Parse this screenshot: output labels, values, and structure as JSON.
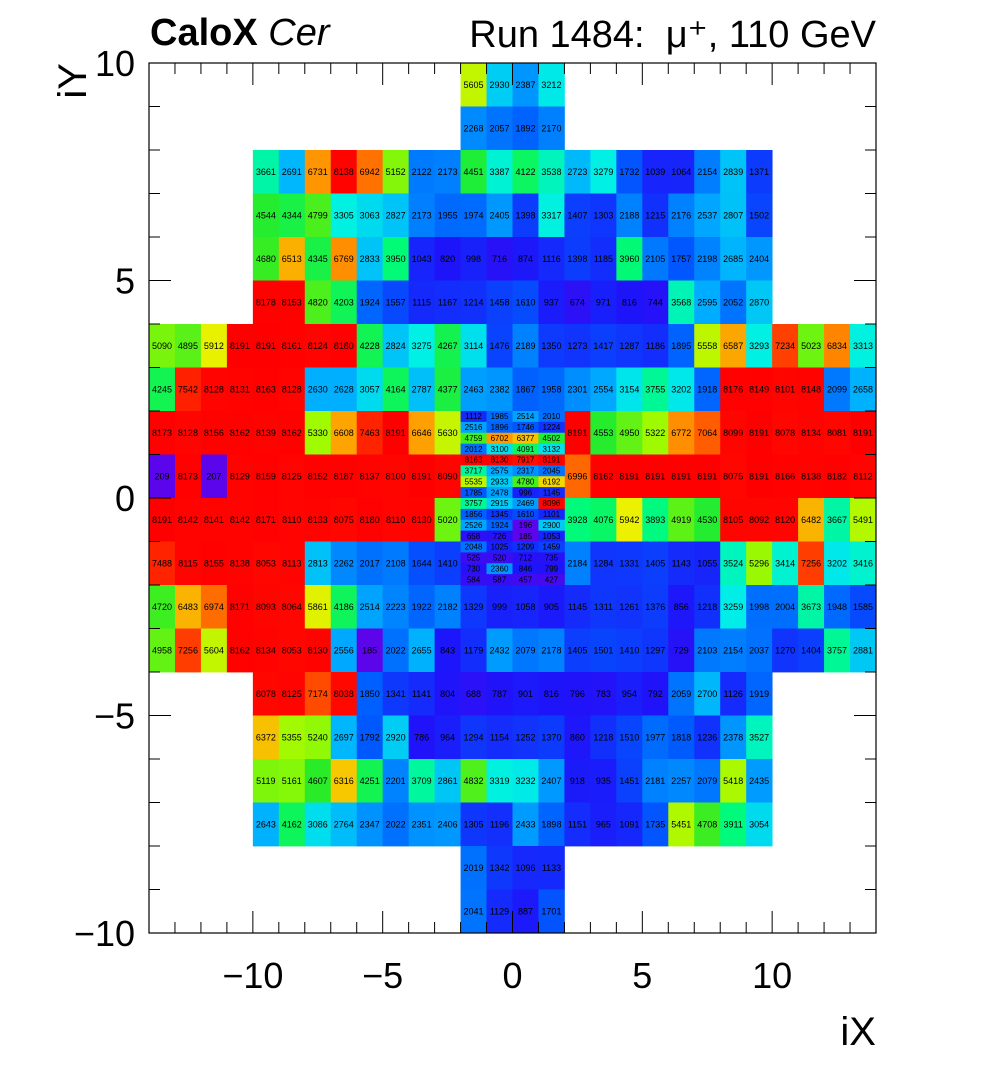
{
  "header": {
    "experiment": "CaloX",
    "channel": "Cer",
    "run_info": "Run 1484:",
    "beam": "μ⁺, 110 GeV"
  },
  "chart_data": {
    "type": "heatmap",
    "xlabel": "iX",
    "ylabel": "iY",
    "xlim": [
      -14,
      14
    ],
    "ylim": [
      -10,
      10
    ],
    "x_ticks": [
      -10,
      -5,
      0,
      5,
      10
    ],
    "y_ticks": [
      -10,
      -5,
      0,
      5,
      10
    ],
    "color_scale": {
      "min": 0,
      "max": 8200,
      "saturates": true
    },
    "coarse": {
      "tower_size": 1,
      "rows": [
        {
          "iy": 9.5,
          "cells": [
            {
              "ix": -1.5,
              "v": 5605
            },
            {
              "ix": -0.5,
              "v": 2930
            },
            {
              "ix": 0.5,
              "v": 2387
            },
            {
              "ix": 1.5,
              "v": 3212
            }
          ]
        },
        {
          "iy": 8.5,
          "cells": [
            {
              "ix": -1.5,
              "v": 2268
            },
            {
              "ix": -0.5,
              "v": 2057
            },
            {
              "ix": 0.5,
              "v": 1892
            },
            {
              "ix": 1.5,
              "v": 2170
            }
          ]
        },
        {
          "iy": 7.5,
          "x0": -9.5,
          "values": [
            3661,
            2691,
            6731,
            8138,
            6942,
            5152,
            2122,
            2173,
            4451,
            3387,
            4122,
            3538,
            2723,
            3279,
            1732,
            1039,
            1064,
            2154,
            2839,
            1371
          ]
        },
        {
          "iy": 6.5,
          "x0": -9.5,
          "values": [
            4544,
            4344,
            4799,
            3305,
            3063,
            2827,
            2173,
            1955,
            1974,
            2405,
            1398,
            3317,
            1407,
            1303,
            2188,
            1215,
            2176,
            2537,
            2807,
            1502
          ]
        },
        {
          "iy": 5.5,
          "x0": -9.5,
          "values": [
            4680,
            6513,
            4345,
            6769,
            2833,
            3950,
            1043,
            820,
            998,
            716,
            874,
            1116,
            1398,
            1185,
            3960,
            2105,
            1757,
            2198,
            2685,
            2404
          ]
        },
        {
          "iy": 4.5,
          "x0": -9.5,
          "values": [
            8178,
            8153,
            4820,
            4203,
            1924,
            1557,
            1115,
            1167,
            1214,
            1458,
            1610,
            937,
            674,
            971,
            816,
            744,
            3568,
            2595,
            2052,
            2870
          ]
        },
        {
          "iy": 3.5,
          "x0": -13.5,
          "values": [
            5090,
            4895,
            5912,
            8191,
            8191,
            8161,
            8124,
            8180,
            4228,
            2824,
            3275,
            4267,
            3114,
            1476,
            2189,
            1350,
            1273,
            1417,
            1287,
            1186,
            1895,
            5558,
            6587,
            3293,
            7234,
            5023,
            6834,
            3313
          ]
        },
        {
          "iy": 2.5,
          "x0": -13.5,
          "values": [
            4245,
            7542,
            8128,
            8131,
            8163,
            8128,
            2630,
            2628,
            3057,
            4164,
            2787,
            4377,
            2463,
            2382,
            1867,
            1958,
            2301,
            2554,
            3154,
            3755,
            3202,
            1918,
            8176,
            8149,
            8101,
            8148,
            2099,
            2658
          ]
        },
        {
          "iy": 1.5,
          "x0": -13.5,
          "values": [
            8173,
            8128,
            8156,
            8162,
            8139,
            8162,
            5330,
            6608,
            7463,
            8191,
            6646,
            5630,
            null,
            null,
            null,
            null,
            8191,
            4553,
            4950,
            5322,
            6772,
            7064,
            8099,
            8191,
            8078,
            8134,
            8081,
            8191
          ]
        },
        {
          "iy": 0.5,
          "x0": -13.5,
          "values": [
            209,
            8173,
            207,
            8129,
            8159,
            8125,
            8152,
            8187,
            8137,
            8100,
            8191,
            8090,
            null,
            null,
            null,
            null,
            6996,
            8162,
            8191,
            8191,
            8191,
            8191,
            8075,
            8191,
            8166,
            8138,
            8182,
            8112
          ]
        },
        {
          "iy": -0.5,
          "x0": -13.5,
          "values": [
            8191,
            8142,
            8141,
            8142,
            8171,
            8110,
            8133,
            8075,
            8180,
            8110,
            8130,
            5020,
            null,
            null,
            null,
            null,
            3928,
            4076,
            5942,
            3893,
            4919,
            4530,
            8105,
            8092,
            8120,
            6482,
            3667,
            5491
          ]
        },
        {
          "iy": -1.5,
          "x0": -13.5,
          "values": [
            7488,
            8115,
            8155,
            8138,
            8053,
            8113,
            2813,
            2262,
            2017,
            2108,
            1644,
            1410,
            null,
            null,
            null,
            null,
            2184,
            1284,
            1331,
            1405,
            1143,
            1055,
            3524,
            5296,
            3414,
            7256,
            3202,
            3416
          ]
        },
        {
          "iy": -2.5,
          "x0": -13.5,
          "values": [
            4720,
            6483,
            6974,
            8171,
            8093,
            8064,
            5861,
            4186,
            2514,
            2223,
            1922,
            2182,
            1329,
            999,
            1058,
            905,
            1145,
            1311,
            1261,
            1376,
            856,
            1218,
            3259,
            1998,
            2004,
            3673,
            1948,
            1585
          ]
        },
        {
          "iy": -3.5,
          "x0": -13.5,
          "values": [
            4958,
            7256,
            5604,
            8162,
            8134,
            8053,
            8130,
            2556,
            185,
            2022,
            2655,
            843,
            1179,
            2432,
            2079,
            2178,
            1405,
            1501,
            1410,
            1297,
            729,
            2103,
            2154,
            2037,
            1270,
            1404,
            3757,
            2881
          ]
        },
        {
          "iy": -4.5,
          "x0": -9.5,
          "values": [
            8078,
            8125,
            7174,
            8038,
            1850,
            1341,
            1141,
            804,
            688,
            787,
            901,
            816,
            796,
            783,
            954,
            792,
            2059,
            2700,
            1126,
            1919
          ]
        },
        {
          "iy": -5.5,
          "x0": -9.5,
          "values": [
            6372,
            5355,
            5240,
            2697,
            1792,
            2920,
            786,
            964,
            1294,
            1154,
            1252,
            1370,
            860,
            1218,
            1510,
            1977,
            1818,
            1236,
            2378,
            3527
          ]
        },
        {
          "iy": -6.5,
          "x0": -9.5,
          "values": [
            5119,
            5161,
            4607,
            6316,
            4251,
            2201,
            3709,
            2861,
            4832,
            3319,
            3232,
            2407,
            918,
            935,
            1451,
            2181,
            2257,
            2079,
            5418,
            2435
          ]
        },
        {
          "iy": -7.5,
          "x0": -9.5,
          "values": [
            2643,
            4162,
            3086,
            2764,
            2347,
            2022,
            2351,
            2406,
            1305,
            1196,
            2433,
            1898,
            1151,
            965,
            1091,
            1735,
            5451,
            4708,
            3911,
            3054
          ]
        },
        {
          "iy": -8.5,
          "cells": [
            {
              "ix": -1.5,
              "v": 2019
            },
            {
              "ix": -0.5,
              "v": 1342
            },
            {
              "ix": 0.5,
              "v": 1096
            },
            {
              "ix": 1.5,
              "v": 1133
            }
          ]
        },
        {
          "iy": -9.5,
          "cells": [
            {
              "ix": -1.5,
              "v": 2041
            },
            {
              "ix": -0.5,
              "v": 1129
            },
            {
              "ix": 0.5,
              "v": 887
            },
            {
              "ix": 1.5,
              "v": 1701
            }
          ]
        }
      ]
    },
    "fine": {
      "x0": -2,
      "cell_width": 1,
      "cell_height": 0.25,
      "rows": [
        {
          "iy": 1.875,
          "values": [
            1112,
            1985,
            2514,
            2010
          ]
        },
        {
          "iy": 1.625,
          "values": [
            2516,
            1896,
            1746,
            1224
          ]
        },
        {
          "iy": 1.375,
          "values": [
            4759,
            6702,
            6377,
            4502
          ]
        },
        {
          "iy": 1.125,
          "values": [
            2012,
            3100,
            4091,
            3132
          ]
        },
        {
          "iy": 0.875,
          "values": [
            8163,
            8130,
            7917,
            8191
          ]
        },
        {
          "iy": 0.625,
          "values": [
            3717,
            2575,
            2317,
            2045
          ]
        },
        {
          "iy": 0.375,
          "values": [
            5535,
            2933,
            4780,
            6192
          ]
        },
        {
          "iy": 0.125,
          "values": [
            1785,
            2478,
            996,
            1145
          ]
        },
        {
          "iy": -0.125,
          "values": [
            3757,
            2915,
            2469,
            8096
          ]
        },
        {
          "iy": -0.375,
          "values": [
            1856,
            1345,
            1610,
            1101
          ]
        },
        {
          "iy": -0.625,
          "values": [
            2526,
            1924,
            196,
            2900
          ]
        },
        {
          "iy": -0.875,
          "values": [
            658,
            726,
            185,
            1053
          ]
        },
        {
          "iy": -1.125,
          "values": [
            2048,
            1025,
            1209,
            1459
          ]
        },
        {
          "iy": -1.375,
          "values": [
            525,
            520,
            712,
            735
          ]
        },
        {
          "iy": -1.625,
          "values": [
            730,
            2360,
            846,
            799
          ]
        },
        {
          "iy": -1.875,
          "values": [
            584,
            587,
            457,
            427
          ]
        }
      ]
    }
  }
}
